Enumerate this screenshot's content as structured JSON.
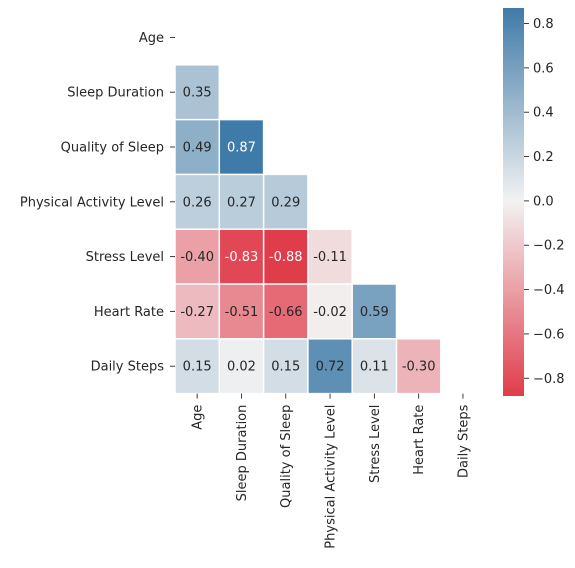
{
  "chart_data": {
    "type": "heatmap",
    "title": "",
    "xlabel": "",
    "ylabel": "",
    "variables": [
      "Age",
      "Sleep Duration",
      "Quality of Sleep",
      "Physical Activity Level",
      "Stress Level",
      "Heart Rate",
      "Daily Steps"
    ],
    "mask": "upper-triangle-including-diagonal",
    "values": [
      [
        null,
        null,
        null,
        null,
        null,
        null,
        null
      ],
      [
        0.35,
        null,
        null,
        null,
        null,
        null,
        null
      ],
      [
        0.49,
        0.87,
        null,
        null,
        null,
        null,
        null
      ],
      [
        0.26,
        0.27,
        0.29,
        null,
        null,
        null,
        null
      ],
      [
        -0.4,
        -0.83,
        -0.88,
        -0.11,
        null,
        null,
        null
      ],
      [
        -0.27,
        -0.51,
        -0.66,
        -0.02,
        0.59,
        null,
        null
      ],
      [
        0.15,
        0.02,
        0.15,
        0.72,
        0.11,
        -0.3,
        null
      ]
    ],
    "labels": [
      [
        "",
        "",
        "",
        "",
        "",
        "",
        ""
      ],
      [
        "0.35",
        "",
        "",
        "",
        "",
        "",
        ""
      ],
      [
        "0.49",
        "0.87",
        "",
        "",
        "",
        "",
        ""
      ],
      [
        "0.26",
        "0.27",
        "0.29",
        "",
        "",
        "",
        ""
      ],
      [
        "-0.40",
        "-0.83",
        "-0.88",
        "-0.11",
        "",
        "",
        ""
      ],
      [
        "-0.27",
        "-0.51",
        "-0.66",
        "-0.02",
        "0.59",
        "",
        ""
      ],
      [
        "0.15",
        "0.02",
        "0.15",
        "0.72",
        "0.11",
        "-0.30",
        ""
      ]
    ],
    "colorbar": {
      "range": [
        -0.88,
        0.87
      ],
      "ticks": [
        0.8,
        0.6,
        0.4,
        0.2,
        0.0,
        -0.2,
        -0.4,
        -0.6,
        -0.8
      ],
      "tick_labels": [
        "0.8",
        "0.6",
        "0.4",
        "0.2",
        "0.0",
        "−0.2",
        "−0.4",
        "−0.6",
        "−0.8"
      ]
    },
    "colors": {
      "negative": "#e03d4b",
      "center": "#f2f2f2",
      "positive": "#3f7ba8"
    }
  }
}
